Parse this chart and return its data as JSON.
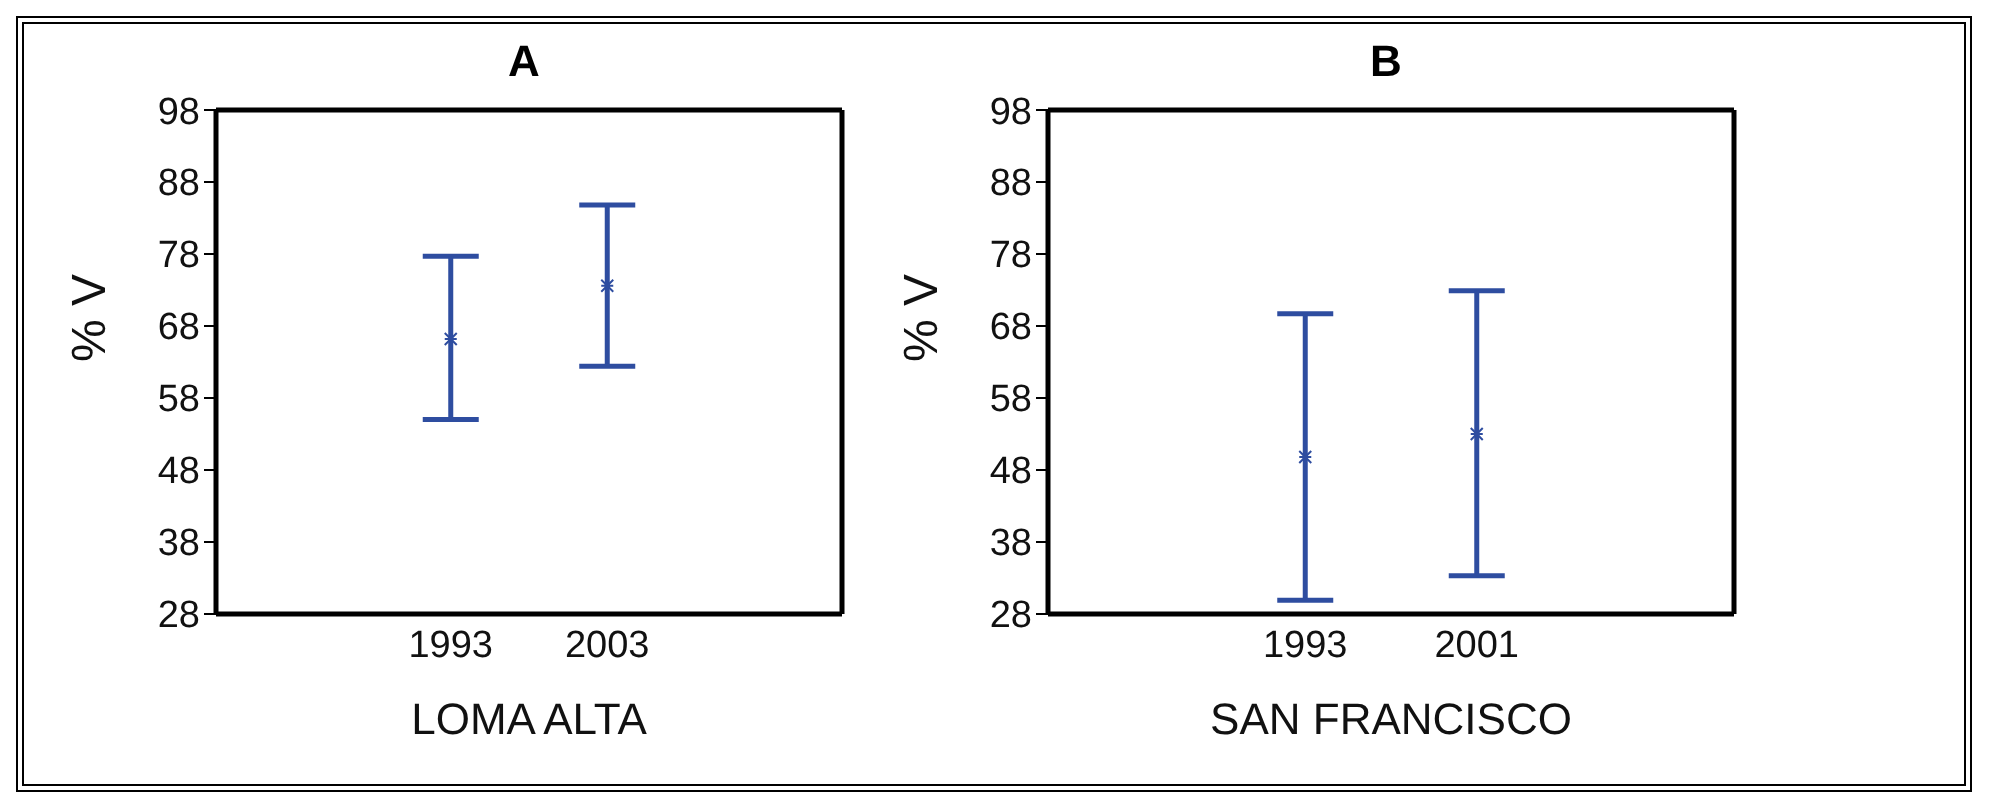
{
  "chart_data": [
    {
      "type": "scatter",
      "title": "A",
      "xlabel": "LOMA ALTA",
      "ylabel": "% V",
      "categories": [
        null,
        "1993",
        "2003",
        null
      ],
      "ylim": [
        28,
        98
      ],
      "yticks": [
        28,
        38,
        48,
        58,
        68,
        78,
        88,
        98
      ],
      "marker": "cross",
      "grid": false,
      "legend": false,
      "series": [
        {
          "color": "#2e4da0",
          "values": [
            null,
            66.2,
            73.6,
            null
          ],
          "errors": [
            null,
            [
              55.0,
              77.7
            ],
            [
              62.4,
              84.8
            ],
            null
          ]
        }
      ]
    },
    {
      "type": "scatter",
      "title": "B",
      "xlabel": "SAN FRANCISCO",
      "ylabel": "% V",
      "categories": [
        null,
        "1993",
        "2001",
        null
      ],
      "ylim": [
        28,
        98
      ],
      "yticks": [
        28,
        38,
        48,
        58,
        68,
        78,
        88,
        98
      ],
      "marker": "cross",
      "grid": false,
      "legend": false,
      "series": [
        {
          "color": "#2e4da0",
          "values": [
            null,
            49.8,
            53.0,
            null
          ],
          "errors": [
            null,
            [
              29.9,
              69.7
            ],
            [
              33.3,
              72.9
            ],
            null
          ]
        }
      ]
    }
  ]
}
